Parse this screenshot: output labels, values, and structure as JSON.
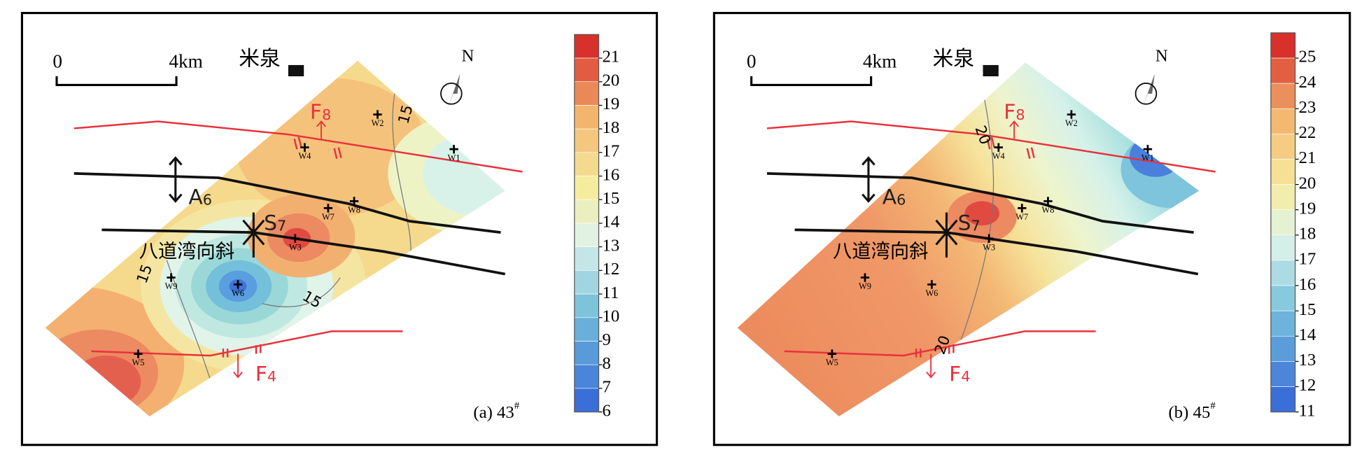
{
  "panels": [
    {
      "caption": {
        "label": "(a) 43",
        "superscript": "#"
      },
      "scale_bar": {
        "start": "0",
        "end": "4km"
      },
      "place": "米泉",
      "north": "N",
      "faults": [
        {
          "name": "F",
          "subscript": "8"
        },
        {
          "name": "F",
          "subscript": "4"
        }
      ],
      "fold_axes": [
        {
          "name": "A",
          "subscript": "6"
        },
        {
          "name": "S",
          "subscript": "7"
        }
      ],
      "syncline": "八道湾向斜",
      "wells": [
        "W1",
        "W2",
        "W3",
        "W4",
        "W5",
        "W6",
        "W7",
        "W8",
        "W9"
      ],
      "contour_labels": [
        15,
        15,
        15
      ],
      "colorbar_ticks": [
        21,
        20,
        19,
        18,
        17,
        16,
        15,
        14,
        13,
        12,
        11,
        10,
        9,
        8,
        7,
        6
      ]
    },
    {
      "caption": {
        "label": "(b) 45",
        "superscript": "#"
      },
      "scale_bar": {
        "start": "0",
        "end": "4km"
      },
      "place": "米泉",
      "north": "N",
      "faults": [
        {
          "name": "F",
          "subscript": "8"
        },
        {
          "name": "F",
          "subscript": "4"
        }
      ],
      "fold_axes": [
        {
          "name": "A",
          "subscript": "6"
        },
        {
          "name": "S",
          "subscript": "7"
        }
      ],
      "syncline": "八道湾向斜",
      "wells": [
        "W1",
        "W2",
        "W3",
        "W4",
        "W5",
        "W6",
        "W7",
        "W8",
        "W9"
      ],
      "contour_labels": [
        20,
        20
      ],
      "colorbar_ticks": [
        25,
        24,
        23,
        22,
        21,
        20,
        19,
        18,
        17,
        16,
        15,
        14,
        13,
        12,
        11
      ]
    }
  ]
}
